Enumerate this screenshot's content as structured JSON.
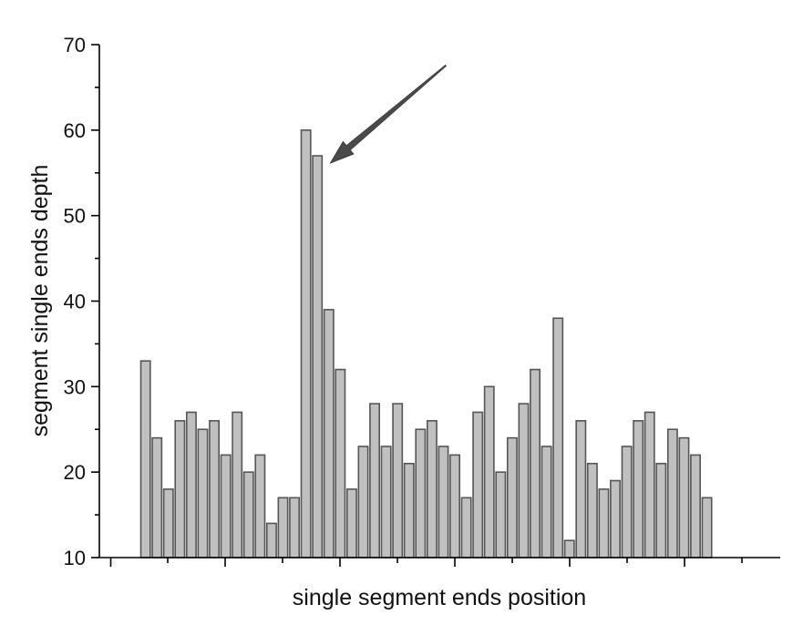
{
  "chart_data": {
    "type": "bar",
    "title": "",
    "xlabel": "single segment ends position",
    "ylabel": "segment single ends depth",
    "ylim": [
      10,
      70
    ],
    "yticks": [
      10,
      20,
      30,
      40,
      50,
      60,
      70
    ],
    "y_tick_labels": [
      "10",
      "20",
      "30",
      "40",
      "50",
      "60",
      "70"
    ],
    "x_tick_labels_shown": false,
    "grid": false,
    "legend": "none",
    "values": [
      33,
      24,
      18,
      26,
      27,
      25,
      26,
      22,
      27,
      20,
      22,
      14,
      17,
      17,
      60,
      57,
      39,
      32,
      18,
      23,
      28,
      23,
      28,
      21,
      25,
      26,
      23,
      22,
      17,
      27,
      30,
      20,
      24,
      28,
      32,
      23,
      38,
      12,
      26,
      21,
      18,
      19,
      23,
      26,
      27,
      21,
      25,
      24,
      22,
      17
    ],
    "annotations": [
      {
        "type": "arrow",
        "points_to_bar_index": 15,
        "text": ""
      }
    ],
    "colors": {
      "bar_fill": "#c0c0c0",
      "bar_stroke": "#555555",
      "arrow": "#4a4a4a",
      "axis": "#000000"
    }
  }
}
